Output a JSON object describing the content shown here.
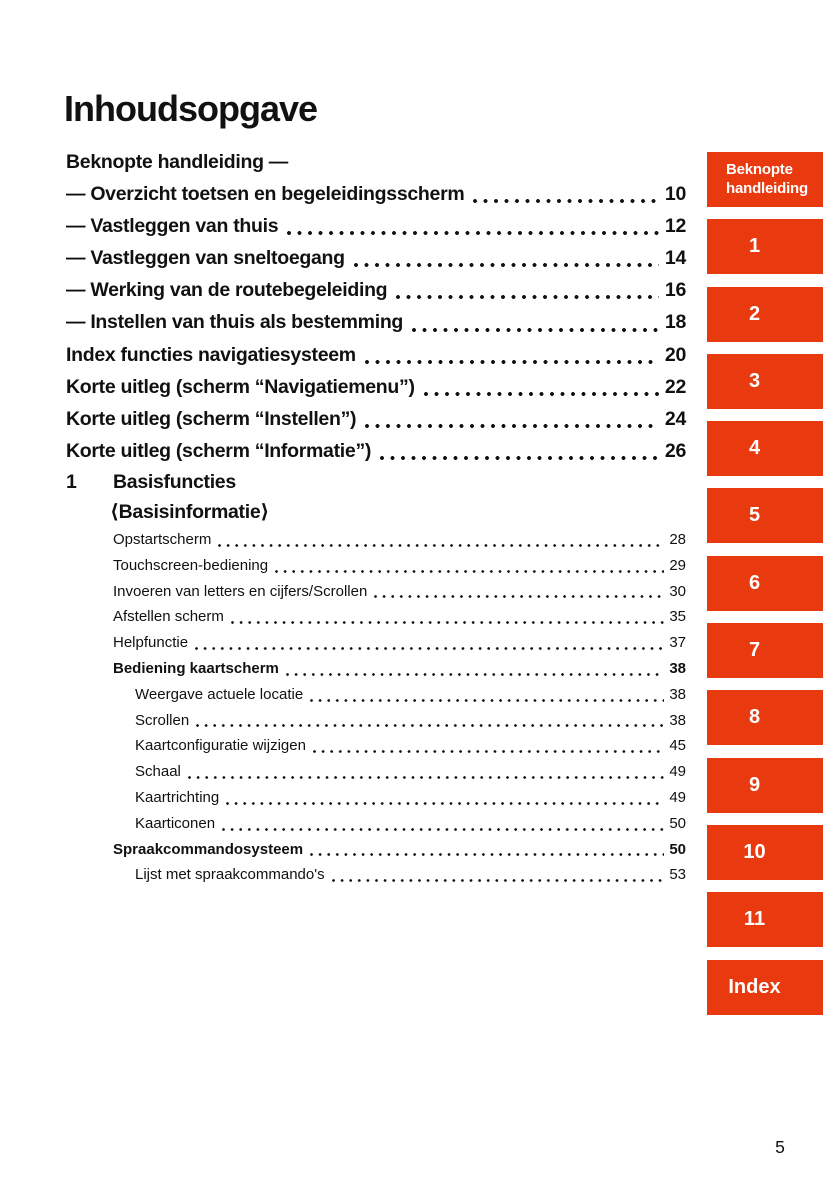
{
  "page": {
    "title": "Inhoudsopgave",
    "number": "5"
  },
  "colors": {
    "accent": "#e8390f",
    "text": "#111111",
    "background": "#ffffff",
    "tab_text": "#ffffff"
  },
  "toc": {
    "rows": [
      {
        "type": "head",
        "label": "Beknopte handleiding —"
      },
      {
        "type": "big",
        "label": "— Overzicht toetsen en begeleidingsscherm",
        "page": "10"
      },
      {
        "type": "big",
        "label": "— Vastleggen van thuis",
        "page": "12"
      },
      {
        "type": "big",
        "label": "— Vastleggen van sneltoegang",
        "page": "14"
      },
      {
        "type": "big",
        "label": "— Werking van de routebegeleiding",
        "page": "16"
      },
      {
        "type": "big",
        "label": "— Instellen van thuis als bestemming",
        "page": "18"
      },
      {
        "type": "big",
        "label": "Index functies navigatiesysteem",
        "page": "20"
      },
      {
        "type": "big",
        "label": "Korte uitleg (scherm “Navigatiemenu”)",
        "page": "22"
      },
      {
        "type": "big",
        "label": "Korte uitleg (scherm “Instellen”)",
        "page": "24"
      },
      {
        "type": "big",
        "label": "Korte uitleg (scherm “Informatie”)",
        "page": "26"
      },
      {
        "type": "chapter",
        "number": "1",
        "label": "Basisfuncties"
      },
      {
        "type": "chapter-sub",
        "label": "⟨Basisinformatie⟩"
      },
      {
        "type": "small",
        "indent": 1,
        "label": "Opstartscherm",
        "page": "28"
      },
      {
        "type": "small",
        "indent": 1,
        "label": "Touchscreen-bediening",
        "page": "29"
      },
      {
        "type": "small",
        "indent": 1,
        "label": "Invoeren van letters en cijfers/Scrollen",
        "page": "30"
      },
      {
        "type": "small",
        "indent": 1,
        "label": "Afstellen scherm",
        "page": "35"
      },
      {
        "type": "small",
        "indent": 1,
        "label": "Helpfunctie",
        "page": "37"
      },
      {
        "type": "small-bold",
        "indent": 1,
        "label": "Bediening kaartscherm",
        "page": "38"
      },
      {
        "type": "small",
        "indent": 2,
        "label": "Weergave actuele locatie",
        "page": "38"
      },
      {
        "type": "small",
        "indent": 2,
        "label": "Scrollen",
        "page": "38"
      },
      {
        "type": "small",
        "indent": 2,
        "label": "Kaartconfiguratie wijzigen",
        "page": "45"
      },
      {
        "type": "small",
        "indent": 2,
        "label": "Schaal",
        "page": "49"
      },
      {
        "type": "small",
        "indent": 2,
        "label": "Kaartrichting",
        "page": "49"
      },
      {
        "type": "small",
        "indent": 2,
        "label": "Kaarticonen",
        "page": "50"
      },
      {
        "type": "small-bold",
        "indent": 1,
        "label": "Spraakcommandosysteem",
        "page": "50"
      },
      {
        "type": "small",
        "indent": 2,
        "label": "Lijst met spraakcommando's",
        "page": "53"
      }
    ]
  },
  "sidebar": {
    "tabs": [
      {
        "style": "two-line",
        "label": "Beknopte handleiding",
        "lines": [
          "Beknopte",
          "handleiding"
        ]
      },
      {
        "style": "number",
        "label": "1"
      },
      {
        "style": "number",
        "label": "2"
      },
      {
        "style": "number",
        "label": "3"
      },
      {
        "style": "number",
        "label": "4"
      },
      {
        "style": "number",
        "label": "5"
      },
      {
        "style": "number",
        "label": "6"
      },
      {
        "style": "number",
        "label": "7"
      },
      {
        "style": "number",
        "label": "8"
      },
      {
        "style": "number",
        "label": "9"
      },
      {
        "style": "number",
        "label": "10"
      },
      {
        "style": "number",
        "label": "11"
      },
      {
        "style": "word",
        "label": "Index"
      }
    ]
  }
}
